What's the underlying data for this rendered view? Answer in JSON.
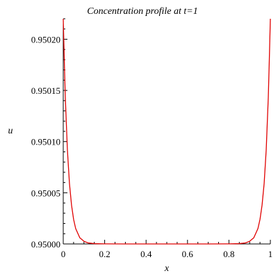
{
  "chart_data": {
    "type": "line",
    "title": "Concentration profile at t=1",
    "xlabel": "x",
    "ylabel": "u",
    "xlim": [
      0,
      1
    ],
    "ylim": [
      0.95,
      0.95022
    ],
    "x_ticks": [
      0,
      0.2,
      0.4,
      0.6,
      0.8,
      1
    ],
    "x_tick_labels": [
      "0",
      "0.2",
      "0.4",
      "0.6",
      "0.8",
      "1"
    ],
    "y_ticks": [
      0.95,
      0.95005,
      0.9501,
      0.95015,
      0.9502
    ],
    "y_tick_labels": [
      "0.95000",
      "0.95005",
      "0.95010",
      "0.95015",
      "0.95020"
    ],
    "grid": false,
    "legend": "none",
    "series": [
      {
        "color": "#e00000",
        "x": [
          0,
          0.005,
          0.01,
          0.02,
          0.03,
          0.04,
          0.05,
          0.06,
          0.08,
          0.1,
          0.12,
          0.15,
          0.2,
          0.3,
          0.5,
          0.7,
          0.8,
          0.85,
          0.88,
          0.9,
          0.92,
          0.94,
          0.95,
          0.96,
          0.97,
          0.98,
          0.99,
          0.995,
          1
        ],
        "y": [
          0.950222,
          0.95018,
          0.950143,
          0.950092,
          0.950059,
          0.950038,
          0.950024,
          0.950015,
          0.950006,
          0.9500026,
          0.950001,
          0.9500003,
          0.9500001,
          0.95,
          0.95,
          0.95,
          0.9500001,
          0.9500003,
          0.950001,
          0.9500026,
          0.950006,
          0.950015,
          0.950024,
          0.950038,
          0.950059,
          0.950092,
          0.950143,
          0.95018,
          0.950222
        ]
      }
    ]
  }
}
